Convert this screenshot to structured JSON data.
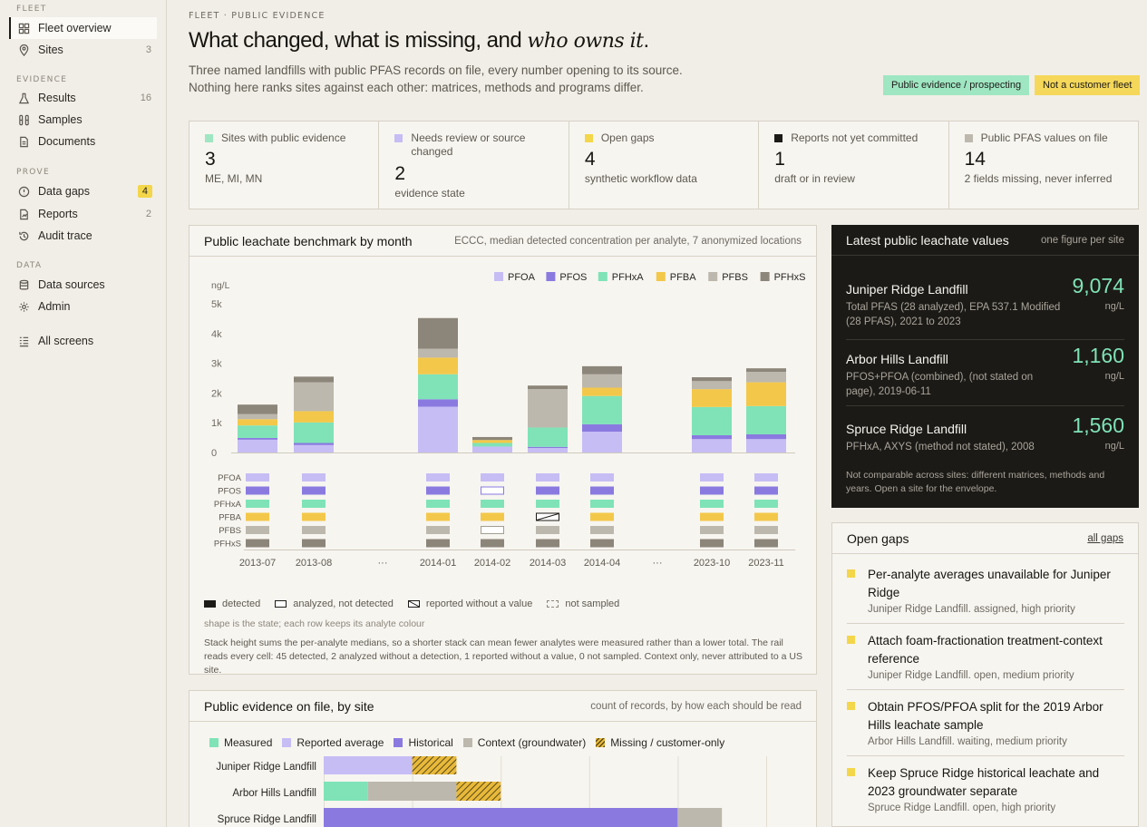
{
  "sidebar": {
    "sections": [
      "FLEET",
      "EVIDENCE",
      "PROVE",
      "DATA"
    ],
    "items": [
      {
        "label": "Fleet overview",
        "count": "",
        "icon": "grid-icon"
      },
      {
        "label": "Sites",
        "count": "3",
        "icon": "pin-icon"
      },
      {
        "label": "Results",
        "count": "16",
        "icon": "flask-icon"
      },
      {
        "label": "Samples",
        "count": "",
        "icon": "tubes-icon"
      },
      {
        "label": "Documents",
        "count": "",
        "icon": "document-icon"
      },
      {
        "label": "Data gaps",
        "count": "4",
        "icon": "alert-circle-icon"
      },
      {
        "label": "Reports",
        "count": "2",
        "icon": "report-icon"
      },
      {
        "label": "Audit trace",
        "count": "",
        "icon": "history-icon"
      },
      {
        "label": "Data sources",
        "count": "",
        "icon": "database-icon"
      },
      {
        "label": "Admin",
        "count": "",
        "icon": "gear-icon"
      },
      {
        "label": "All screens",
        "count": "",
        "icon": "list-icon"
      }
    ]
  },
  "header": {
    "eyebrow": "FLEET · PUBLIC EVIDENCE",
    "title_plain": "What changed, what is missing, and ",
    "title_italic": "who owns it",
    "title_end": ".",
    "subtitle_line1": "Three named landfills with public PFAS records on file, every number opening to its source.",
    "subtitle_line2": "Nothing here ranks sites against each other: matrices, methods and programs differ.",
    "tag_green": "Public evidence / prospecting",
    "tag_yellow": "Not a customer fleet"
  },
  "kpis": [
    {
      "label": "Sites with public evidence",
      "value": "3",
      "sub": "ME, MI, MN",
      "color": "#9fe6c2"
    },
    {
      "label": "Needs review or source changed",
      "value": "2",
      "sub": "evidence state",
      "color": "#c6bdf5"
    },
    {
      "label": "Open gaps",
      "value": "4",
      "sub": "synthetic workflow data",
      "color": "#f3d64a"
    },
    {
      "label": "Reports not yet committed",
      "value": "1",
      "sub": "draft or in review",
      "color": "#1d1b18"
    },
    {
      "label": "Public PFAS values on file",
      "value": "14",
      "sub": "2 fields missing, never inferred",
      "color": "#bdb8ad"
    }
  ],
  "benchmark": {
    "title": "Public leachate benchmark by month",
    "note": "ECCC, median detected concentration per analyte, 7 anonymized locations",
    "state_legend": [
      "detected",
      "analyzed, not detected",
      "reported without a value",
      "not sampled"
    ],
    "shape_note": "shape is the state; each row keeps its analyte colour",
    "caption": "Stack height sums the per-analyte medians, so a shorter stack can mean fewer analytes were measured rather than a lower total. The rail reads every cell: 45 detected, 2 analyzed without a detection, 1 reported without a value, 0 not sampled. Context only, never attributed to a US site."
  },
  "chart_data": {
    "type": "bar",
    "stacked": true,
    "ylabel": "ng/L",
    "ylim": [
      0,
      5000
    ],
    "yticks": [
      "0",
      "1k",
      "2k",
      "3k",
      "4k",
      "5k"
    ],
    "legend_position": "top-right",
    "categories": [
      "2013-07",
      "2013-08",
      "···",
      "2014-01",
      "2014-02",
      "2014-03",
      "2014-04",
      "···",
      "2023-10",
      "2023-11"
    ],
    "series": [
      {
        "name": "PFOA",
        "color": "#c6bdf5",
        "values": [
          430,
          250,
          null,
          1540,
          200,
          150,
          700,
          null,
          450,
          450
        ]
      },
      {
        "name": "PFOS",
        "color": "#8a7ae0",
        "values": [
          60,
          70,
          null,
          250,
          0,
          40,
          250,
          null,
          130,
          160
        ]
      },
      {
        "name": "PFHxA",
        "color": "#7fe3b7",
        "values": [
          420,
          690,
          null,
          840,
          120,
          650,
          950,
          null,
          950,
          950
        ]
      },
      {
        "name": "PFBA",
        "color": "#f3c84a",
        "values": [
          210,
          380,
          null,
          560,
          100,
          0,
          280,
          null,
          600,
          800
        ]
      },
      {
        "name": "PFBS",
        "color": "#bdb8ad",
        "values": [
          170,
          970,
          null,
          300,
          0,
          1290,
          450,
          null,
          270,
          350
        ]
      },
      {
        "name": "PFHxS",
        "color": "#8c857a",
        "values": [
          320,
          190,
          null,
          1030,
          100,
          120,
          270,
          null,
          130,
          120
        ]
      }
    ],
    "rail_states": {
      "2014-02": {
        "PFOS": "not-detected",
        "PFBS": "not-detected"
      },
      "2014-03": {
        "PFBA": "no-value"
      }
    }
  },
  "evidence": {
    "title": "Public evidence on file, by site",
    "note": "count of records, by how each should be read",
    "legend": [
      {
        "label": "Measured",
        "color": "#7fe3b7"
      },
      {
        "label": "Reported average",
        "color": "#c6bdf5"
      },
      {
        "label": "Historical",
        "color": "#8a7ae0"
      },
      {
        "label": "Context (groundwater)",
        "color": "#bdb8ad"
      },
      {
        "label": "Missing / customer-only",
        "color": "hatch"
      }
    ],
    "xlim": [
      0,
      10
    ],
    "sites": [
      {
        "name": "Juniper Ridge Landfill",
        "parts": [
          {
            "kind": "Reported average",
            "count": 2
          },
          {
            "kind": "Missing / customer-only",
            "count": 1
          }
        ]
      },
      {
        "name": "Arbor Hills Landfill",
        "parts": [
          {
            "kind": "Measured",
            "count": 1
          },
          {
            "kind": "Context (groundwater)",
            "count": 2
          },
          {
            "kind": "Missing / customer-only",
            "count": 1
          }
        ]
      },
      {
        "name": "Spruce Ridge Landfill",
        "parts": [
          {
            "kind": "Historical",
            "count": 8
          },
          {
            "kind": "Context (groundwater)",
            "count": 1
          }
        ]
      }
    ]
  },
  "latest": {
    "title": "Latest public leachate values",
    "note": "one figure per site",
    "rows": [
      {
        "name": "Juniper Ridge Landfill",
        "desc": "Total PFAS (28 analyzed), EPA 537.1 Modified (28 PFAS), 2021 to 2023",
        "value": "9,074",
        "unit": "ng/L"
      },
      {
        "name": "Arbor Hills Landfill",
        "desc": "PFOS+PFOA (combined), (not stated on page), 2019-06-11",
        "value": "1,160",
        "unit": "ng/L"
      },
      {
        "name": "Spruce Ridge Landfill",
        "desc": "PFHxA, AXYS (method not stated), 2008",
        "value": "1,560",
        "unit": "ng/L"
      }
    ],
    "footnote": "Not comparable across sites: different matrices, methods and years. Open a site for the envelope."
  },
  "gaps": {
    "title": "Open gaps",
    "link": "all gaps",
    "items": [
      {
        "title": "Per-analyte averages unavailable for Juniper Ridge",
        "sub": "Juniper Ridge Landfill. assigned, high priority"
      },
      {
        "title": "Attach foam-fractionation treatment-context reference",
        "sub": "Juniper Ridge Landfill. open, medium priority"
      },
      {
        "title": "Obtain PFOS/PFOA split for the 2019 Arbor Hills leachate sample",
        "sub": "Arbor Hills Landfill. waiting, medium priority"
      },
      {
        "title": "Keep Spruce Ridge historical leachate and 2023 groundwater separate",
        "sub": "Spruce Ridge Landfill. open, high priority"
      }
    ]
  }
}
